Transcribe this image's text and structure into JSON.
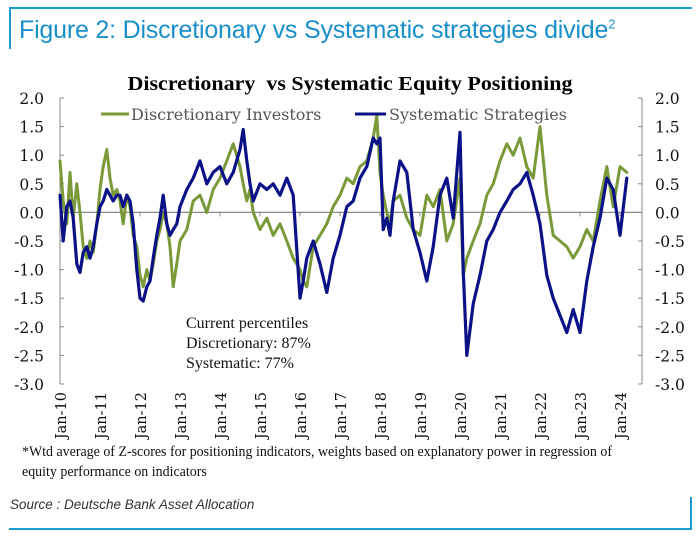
{
  "figure": {
    "title": "Figure 2: Discretionary vs Systematic strategies divide",
    "title_superscript": "2",
    "footnote": "*Wtd average of Z-scores for positioning indicators, weights based on explanatory power in regression of equity performance on indicators",
    "source": "Source : Deutsche Bank Asset Allocation",
    "accent_color": "#1a9bd0"
  },
  "chart_data": {
    "type": "line",
    "title": "Discretionary  vs Systematic Equity Positioning",
    "xlabel": "",
    "ylabel": "",
    "ylim": [
      -3.0,
      2.0
    ],
    "yticks": [
      "2.0",
      "1.5",
      "1.0",
      "0.5",
      "0.0",
      "-0.5",
      "-1.0",
      "-1.5",
      "-2.0",
      "-2.5",
      "-3.0"
    ],
    "ytick_values": [
      2.0,
      1.5,
      1.0,
      0.5,
      0.0,
      -0.5,
      -1.0,
      -1.5,
      -2.0,
      -2.5,
      -3.0
    ],
    "xticks": [
      "Jan-10",
      "Jan-11",
      "Jan-12",
      "Jan-13",
      "Jan-14",
      "Jan-15",
      "Jan-16",
      "Jan-17",
      "Jan-18",
      "Jan-19",
      "Jan-20",
      "Jan-21",
      "Jan-22",
      "Jan-23",
      "Jan-24"
    ],
    "x_unit": "years since Jan-2010",
    "xlim": [
      0,
      14
    ],
    "grid": false,
    "legend_position": "top",
    "annotation": {
      "heading": "Current percentiles",
      "discretionary": "Discretionary: 87%",
      "systematic": "Systematic: 77%"
    },
    "series": [
      {
        "name": "Discretionary Investors",
        "color": "#7a9a3a",
        "x": [
          0.0,
          0.08,
          0.17,
          0.25,
          0.33,
          0.42,
          0.5,
          0.58,
          0.67,
          0.75,
          0.83,
          0.92,
          1.0,
          1.08,
          1.17,
          1.25,
          1.33,
          1.42,
          1.5,
          1.58,
          1.67,
          1.75,
          1.83,
          1.92,
          2.0,
          2.08,
          2.17,
          2.25,
          2.33,
          2.42,
          2.5,
          2.58,
          2.67,
          2.75,
          2.83,
          2.92,
          3.0,
          3.17,
          3.33,
          3.5,
          3.67,
          3.83,
          4.0,
          4.17,
          4.33,
          4.5,
          4.58,
          4.67,
          4.75,
          4.83,
          5.0,
          5.17,
          5.33,
          5.5,
          5.67,
          5.83,
          6.0,
          6.08,
          6.17,
          6.33,
          6.5,
          6.67,
          6.83,
          7.0,
          7.17,
          7.33,
          7.5,
          7.67,
          7.83,
          7.92,
          8.0,
          8.08,
          8.17,
          8.25,
          8.33,
          8.5,
          8.67,
          8.83,
          9.0,
          9.17,
          9.33,
          9.5,
          9.67,
          9.83,
          10.0,
          10.08,
          10.17,
          10.33,
          10.5,
          10.67,
          10.83,
          11.0,
          11.17,
          11.33,
          11.5,
          11.67,
          11.83,
          12.0,
          12.17,
          12.33,
          12.5,
          12.67,
          12.83,
          13.0,
          13.17,
          13.33,
          13.5,
          13.67,
          13.83,
          14.0,
          14.17
        ],
        "y": [
          0.9,
          0.2,
          -0.2,
          0.7,
          -0.1,
          0.5,
          0.0,
          -0.6,
          -0.8,
          -0.5,
          -0.7,
          -0.2,
          0.4,
          0.8,
          1.1,
          0.6,
          0.3,
          0.4,
          0.2,
          -0.2,
          0.3,
          0.1,
          -0.4,
          -0.6,
          -1.1,
          -1.3,
          -1.0,
          -1.2,
          -0.9,
          -0.5,
          -0.3,
          0.0,
          -0.2,
          -0.6,
          -1.3,
          -0.9,
          -0.5,
          -0.3,
          0.2,
          0.3,
          0.0,
          0.4,
          0.6,
          0.9,
          1.2,
          0.8,
          0.5,
          0.2,
          0.4,
          0.0,
          -0.3,
          -0.1,
          -0.4,
          -0.2,
          -0.5,
          -0.8,
          -1.0,
          -1.2,
          -1.3,
          -0.6,
          -0.4,
          -0.2,
          0.1,
          0.3,
          0.6,
          0.5,
          0.8,
          0.9,
          1.3,
          1.7,
          0.7,
          0.3,
          0.0,
          -0.2,
          0.2,
          0.3,
          -0.1,
          -0.3,
          -0.4,
          0.3,
          0.1,
          0.4,
          -0.5,
          -0.2,
          0.6,
          -1.1,
          -0.8,
          -0.5,
          -0.2,
          0.3,
          0.5,
          0.9,
          1.2,
          1.0,
          1.3,
          0.8,
          0.6,
          1.5,
          0.3,
          -0.4,
          -0.5,
          -0.6,
          -0.8,
          -0.6,
          -0.3,
          -0.5,
          0.2,
          0.8,
          0.1,
          0.8,
          0.7
        ]
      },
      {
        "name": "Systematic Strategies",
        "color": "#0b1287",
        "x": [
          0.0,
          0.08,
          0.17,
          0.25,
          0.33,
          0.42,
          0.5,
          0.58,
          0.67,
          0.75,
          0.83,
          0.92,
          1.0,
          1.08,
          1.17,
          1.25,
          1.33,
          1.42,
          1.5,
          1.58,
          1.67,
          1.75,
          1.83,
          1.92,
          2.0,
          2.08,
          2.17,
          2.25,
          2.33,
          2.42,
          2.5,
          2.58,
          2.67,
          2.75,
          2.83,
          2.92,
          3.0,
          3.17,
          3.33,
          3.5,
          3.67,
          3.83,
          4.0,
          4.17,
          4.33,
          4.5,
          4.58,
          4.67,
          4.75,
          4.83,
          5.0,
          5.17,
          5.33,
          5.5,
          5.67,
          5.83,
          6.0,
          6.08,
          6.17,
          6.33,
          6.5,
          6.67,
          6.83,
          7.0,
          7.17,
          7.33,
          7.5,
          7.67,
          7.83,
          7.92,
          8.0,
          8.08,
          8.17,
          8.25,
          8.33,
          8.5,
          8.67,
          8.83,
          9.0,
          9.17,
          9.33,
          9.5,
          9.67,
          9.83,
          10.0,
          10.08,
          10.17,
          10.33,
          10.5,
          10.67,
          10.83,
          11.0,
          11.17,
          11.33,
          11.5,
          11.67,
          11.83,
          12.0,
          12.17,
          12.33,
          12.5,
          12.67,
          12.83,
          13.0,
          13.17,
          13.33,
          13.5,
          13.67,
          13.83,
          14.0,
          14.17
        ],
        "y": [
          0.3,
          -0.5,
          0.1,
          0.2,
          -0.1,
          -0.9,
          -1.05,
          -0.7,
          -0.6,
          -0.8,
          -0.6,
          -0.2,
          0.1,
          0.2,
          0.4,
          0.3,
          0.2,
          0.3,
          0.3,
          0.1,
          0.3,
          0.2,
          -0.2,
          -1.0,
          -1.5,
          -1.55,
          -1.3,
          -1.2,
          -0.8,
          -0.4,
          -0.1,
          0.3,
          -0.2,
          -0.4,
          -0.3,
          -0.2,
          0.1,
          0.4,
          0.6,
          0.9,
          0.5,
          0.7,
          0.8,
          0.5,
          0.7,
          1.1,
          1.45,
          0.9,
          0.5,
          0.2,
          0.5,
          0.4,
          0.5,
          0.3,
          0.6,
          0.3,
          -1.5,
          -1.2,
          -0.8,
          -0.5,
          -0.9,
          -1.4,
          -0.8,
          -0.4,
          0.1,
          0.2,
          0.6,
          0.8,
          1.3,
          1.2,
          1.3,
          -0.3,
          -0.1,
          -0.4,
          0.2,
          0.9,
          0.7,
          -0.3,
          -0.7,
          -1.2,
          -0.6,
          0.3,
          0.6,
          -0.1,
          1.4,
          -1.0,
          -2.5,
          -1.6,
          -1.1,
          -0.5,
          -0.3,
          0.0,
          0.2,
          0.4,
          0.5,
          0.7,
          0.3,
          -0.2,
          -1.1,
          -1.5,
          -1.8,
          -2.1,
          -1.7,
          -2.1,
          -1.2,
          -0.6,
          -0.1,
          0.6,
          0.4,
          -0.4,
          0.6
        ]
      }
    ]
  }
}
